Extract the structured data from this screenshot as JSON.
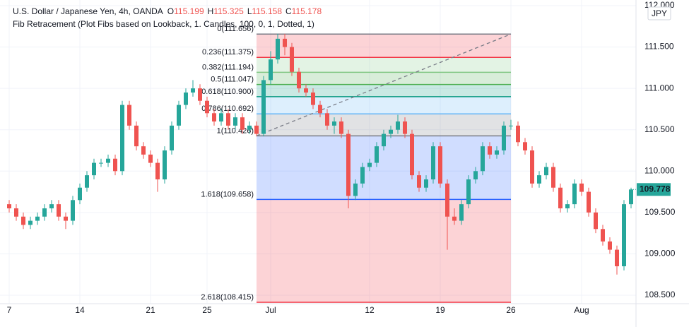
{
  "chart_data": {
    "type": "candlestick",
    "title": "U.S. Dollar / Japanese Yen, 4h, OANDA",
    "ohlc_header": [
      {
        "label": "O",
        "value": 115.199
      },
      {
        "label": "H",
        "value": 115.325
      },
      {
        "label": "L",
        "value": 115.158
      },
      {
        "label": "C",
        "value": 115.178
      }
    ],
    "indicator": "Fib Retracement (Plot Fibs based on Lookback, 1. Candles, 100, 0, 1, Dotted, 1)",
    "currency": "JPY",
    "up_color": "#26a69a",
    "down_color": "#ef5350",
    "grid": true,
    "xlim": [
      -0.5,
      88.5
    ],
    "xticks": [
      {
        "value": 0,
        "label": "7"
      },
      {
        "value": 10,
        "label": "14"
      },
      {
        "value": 20,
        "label": "21"
      },
      {
        "value": 28,
        "label": "25"
      },
      {
        "value": 37,
        "label": "Jul"
      },
      {
        "value": 51,
        "label": "12"
      },
      {
        "value": 61,
        "label": "19"
      },
      {
        "value": 71,
        "label": "26"
      },
      {
        "value": 81,
        "label": "Aug"
      }
    ],
    "ylim": [
      108.415,
      112.0
    ],
    "yticks": [
      {
        "value": 112.0,
        "label": "112.000"
      },
      {
        "value": 111.5,
        "label": "111.500"
      },
      {
        "value": 111.0,
        "label": "111.000"
      },
      {
        "value": 110.5,
        "label": "110.500"
      },
      {
        "value": 110.0,
        "label": "110.000"
      },
      {
        "value": 109.5,
        "label": "109.500"
      },
      {
        "value": 109.0,
        "label": "109.000"
      },
      {
        "value": 108.5,
        "label": "108.500"
      }
    ],
    "fib_x": [
      35,
      71
    ],
    "fib_levels": [
      {
        "value": 111.656,
        "label": "0(111.656)",
        "color": "#787b86"
      },
      {
        "value": 111.375,
        "label": "0.236(111.375)",
        "color": "#f23645"
      },
      {
        "value": 111.194,
        "label": "0.382(111.194)",
        "color": "#81c784"
      },
      {
        "value": 111.047,
        "label": "0.5(111.047)",
        "color": "#4caf50"
      },
      {
        "value": 110.9,
        "label": "0.618(110.900)",
        "color": "#089981"
      },
      {
        "value": 110.692,
        "label": "0.786(110.692)",
        "color": "#64b5f6"
      },
      {
        "value": 110.426,
        "label": "1(110.426)",
        "color": "#787b86"
      },
      {
        "value": 109.658,
        "label": "1.618(109.658)",
        "color": "#2962ff"
      },
      {
        "value": 108.415,
        "label": "2.618(108.415)",
        "color": "#f23645"
      }
    ],
    "open": [
      109.6,
      109.55,
      109.45,
      109.35,
      109.4,
      109.45,
      109.55,
      109.6,
      109.45,
      109.4,
      109.65,
      109.8,
      109.95,
      110.1,
      110.1,
      110.15,
      110.0,
      110.8,
      110.55,
      110.3,
      110.2,
      110.1,
      109.9,
      110.25,
      110.55,
      110.8,
      110.95,
      111.0,
      110.85,
      110.7,
      110.6,
      110.7,
      110.55,
      110.65,
      110.5,
      110.55,
      110.45,
      111.1,
      111.35,
      111.6,
      111.5,
      111.2,
      111.0,
      110.95,
      110.8,
      110.7,
      110.55,
      110.6,
      110.45,
      109.7,
      109.85,
      110.05,
      110.1,
      110.3,
      110.45,
      110.5,
      110.6,
      110.45,
      109.95,
      109.8,
      109.9,
      110.3,
      109.85,
      109.45,
      109.4,
      109.6,
      109.9,
      110.0,
      110.3,
      110.2,
      110.25,
      110.55,
      110.55,
      110.35,
      110.25,
      109.85,
      109.95,
      110.05,
      109.8,
      109.55,
      109.6,
      109.85,
      109.75,
      109.5,
      109.3,
      109.15,
      109.05,
      108.85,
      109.6
    ],
    "high": [
      109.65,
      109.6,
      109.5,
      109.45,
      109.5,
      109.6,
      109.65,
      109.65,
      109.5,
      109.7,
      109.85,
      110.0,
      110.15,
      110.15,
      110.2,
      110.2,
      110.85,
      110.85,
      110.6,
      110.35,
      110.25,
      110.15,
      110.3,
      110.6,
      110.85,
      111.0,
      111.1,
      111.05,
      110.9,
      110.75,
      110.75,
      110.75,
      110.7,
      110.7,
      110.6,
      110.6,
      111.15,
      111.45,
      111.66,
      111.66,
      111.55,
      111.25,
      111.05,
      111.0,
      110.85,
      110.75,
      110.65,
      110.65,
      110.5,
      109.9,
      110.1,
      110.15,
      110.35,
      110.5,
      110.55,
      110.68,
      110.65,
      110.5,
      110.0,
      109.95,
      110.35,
      110.35,
      109.9,
      109.55,
      109.65,
      109.95,
      110.05,
      110.35,
      110.35,
      110.3,
      110.6,
      110.62,
      110.6,
      110.4,
      110.3,
      110.0,
      110.1,
      110.1,
      109.85,
      109.65,
      109.9,
      109.9,
      109.8,
      109.55,
      109.35,
      109.2,
      109.1,
      109.65,
      109.8
    ],
    "low": [
      109.5,
      109.4,
      109.3,
      109.3,
      109.35,
      109.4,
      109.5,
      109.4,
      109.3,
      109.35,
      109.6,
      109.75,
      109.9,
      110.05,
      110.05,
      109.95,
      109.95,
      110.5,
      110.25,
      110.15,
      110.05,
      109.75,
      109.85,
      110.2,
      110.5,
      110.75,
      110.9,
      110.8,
      110.65,
      110.55,
      110.55,
      110.5,
      110.5,
      110.45,
      110.45,
      110.42,
      110.42,
      111.05,
      111.3,
      111.4,
      111.15,
      110.95,
      110.9,
      110.75,
      110.65,
      110.5,
      110.45,
      110.4,
      109.55,
      109.65,
      109.8,
      110.0,
      110.05,
      110.25,
      110.4,
      110.45,
      110.4,
      109.9,
      109.75,
      109.75,
      109.85,
      109.8,
      109.05,
      109.35,
      109.35,
      109.55,
      109.85,
      109.95,
      110.15,
      110.15,
      110.2,
      110.5,
      110.3,
      110.2,
      109.8,
      109.8,
      109.9,
      109.75,
      109.5,
      109.5,
      109.55,
      109.7,
      109.45,
      109.25,
      109.1,
      109.0,
      108.75,
      108.8,
      109.55
    ],
    "close": [
      109.55,
      109.45,
      109.35,
      109.4,
      109.45,
      109.55,
      109.6,
      109.45,
      109.4,
      109.65,
      109.8,
      109.95,
      110.1,
      110.1,
      110.15,
      110.0,
      110.8,
      110.55,
      110.3,
      110.2,
      110.1,
      109.9,
      110.25,
      110.55,
      110.8,
      110.95,
      111.0,
      110.85,
      110.7,
      110.6,
      110.7,
      110.55,
      110.65,
      110.5,
      110.55,
      110.45,
      111.1,
      111.35,
      111.6,
      111.5,
      111.2,
      111.0,
      110.95,
      110.8,
      110.7,
      110.55,
      110.6,
      110.45,
      109.7,
      109.85,
      110.05,
      110.1,
      110.3,
      110.45,
      110.5,
      110.6,
      110.45,
      109.95,
      109.8,
      109.9,
      110.3,
      109.85,
      109.45,
      109.4,
      109.6,
      109.9,
      110.0,
      110.3,
      110.2,
      110.25,
      110.55,
      110.55,
      110.35,
      110.25,
      109.85,
      109.95,
      110.05,
      109.8,
      109.55,
      109.6,
      109.85,
      109.75,
      109.5,
      109.3,
      109.15,
      109.05,
      108.85,
      109.6,
      109.778
    ]
  }
}
